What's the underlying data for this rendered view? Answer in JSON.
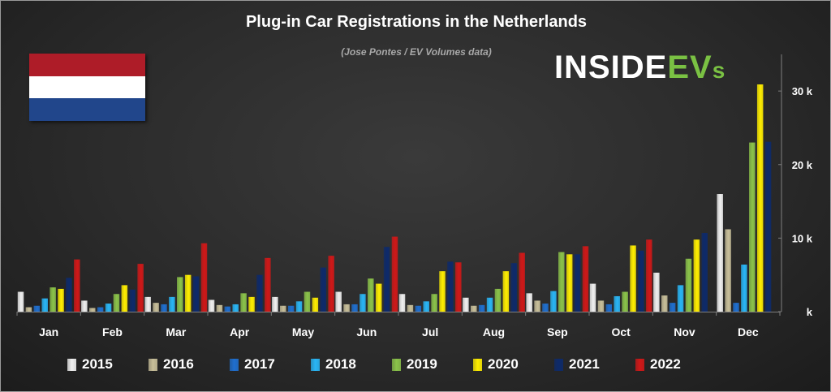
{
  "chart_data": {
    "type": "bar",
    "title": "Plug-in Car Registrations in the Netherlands",
    "subtitle": "(Jose Pontes / EV Volumes data)",
    "categories": [
      "Jan",
      "Feb",
      "Mar",
      "Apr",
      "May",
      "Jun",
      "Jul",
      "Aug",
      "Sep",
      "Oct",
      "Nov",
      "Dec"
    ],
    "series": [
      {
        "name": "2015",
        "color": "#f0f0f0",
        "values": [
          2700,
          1500,
          2000,
          1600,
          2000,
          2700,
          2400,
          1900,
          2500,
          3800,
          5300,
          16000
        ]
      },
      {
        "name": "2016",
        "color": "#c8bf9a",
        "values": [
          600,
          500,
          1200,
          900,
          800,
          1000,
          900,
          800,
          1500,
          1500,
          2200,
          11200
        ]
      },
      {
        "name": "2017",
        "color": "#1f6fcf",
        "values": [
          800,
          600,
          1000,
          700,
          800,
          1000,
          800,
          900,
          1100,
          1000,
          1200,
          1200
        ]
      },
      {
        "name": "2018",
        "color": "#29b6f6",
        "values": [
          1800,
          1100,
          2000,
          1000,
          1400,
          2400,
          1400,
          1900,
          2800,
          2100,
          3600,
          6400
        ]
      },
      {
        "name": "2019",
        "color": "#8bc34a",
        "values": [
          3300,
          2400,
          4700,
          2500,
          2700,
          4500,
          2400,
          3100,
          8100,
          2700,
          7200,
          23000
        ]
      },
      {
        "name": "2020",
        "color": "#ffee00",
        "values": [
          3100,
          3600,
          5000,
          2000,
          1900,
          3800,
          5500,
          5500,
          7800,
          9000,
          9800,
          30900
        ]
      },
      {
        "name": "2021",
        "color": "#0d2a6b",
        "values": [
          4600,
          3000,
          4800,
          5000,
          6000,
          8800,
          6800,
          6600,
          7800,
          8300,
          10700,
          23100
        ]
      },
      {
        "name": "2022",
        "color": "#d01818",
        "values": [
          7100,
          6500,
          9300,
          7300,
          7600,
          10200,
          6700,
          8000,
          8900,
          9800,
          null,
          null
        ]
      }
    ],
    "yaxis": {
      "ticks": [
        "k",
        "10 k",
        "20 k",
        "30 k"
      ],
      "tick_values": [
        0,
        10000,
        20000,
        30000
      ],
      "ylim": [
        0,
        35000
      ],
      "side": "right"
    },
    "legend_position": "bottom",
    "grid": false
  },
  "branding": {
    "logo_main": "INSIDE",
    "logo_ev": "EV",
    "logo_s": "s"
  },
  "flag_colors": [
    "#ae1c28",
    "#ffffff",
    "#21468b"
  ]
}
